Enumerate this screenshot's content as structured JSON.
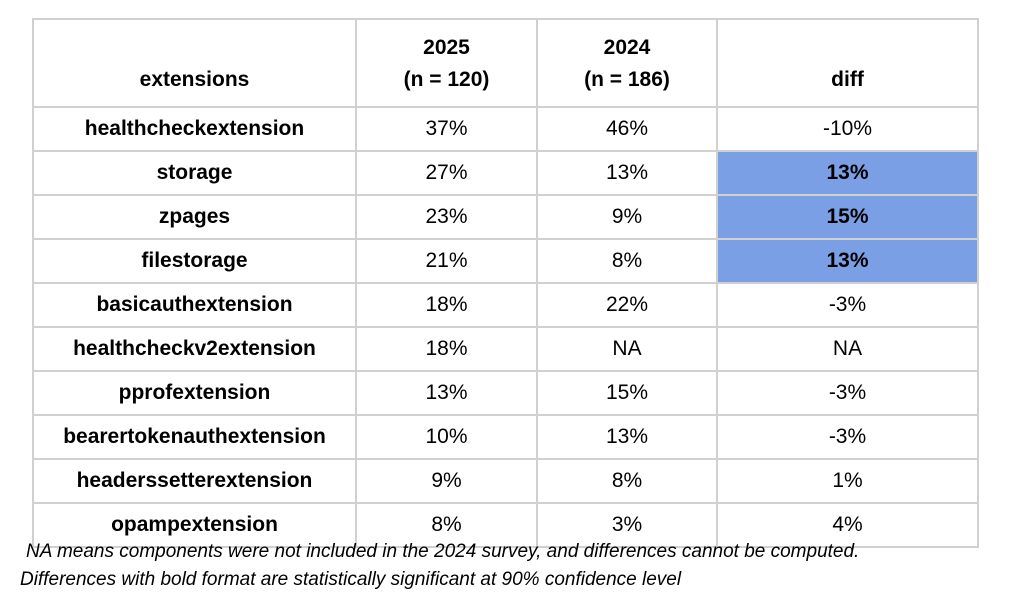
{
  "table": {
    "header": [
      [
        "extensions"
      ],
      [
        "2025",
        "(n = 120)"
      ],
      [
        "2024",
        "(n = 186)"
      ],
      [
        "diff"
      ]
    ],
    "rows": [
      [
        "healthcheckextension",
        "37%",
        "46%",
        "-10%"
      ],
      [
        "storage",
        "27%",
        "13%",
        "13%"
      ],
      [
        "zpages",
        "23%",
        "9%",
        "15%"
      ],
      [
        "filestorage",
        "21%",
        "8%",
        "13%"
      ],
      [
        "basicauthextension",
        "18%",
        "22%",
        "-3%"
      ],
      [
        "healthcheckv2extension",
        "18%",
        "NA",
        "NA"
      ],
      [
        "pprofextension",
        "13%",
        "15%",
        "-3%"
      ],
      [
        "bearertokenauthextension",
        "10%",
        "13%",
        "-3%"
      ],
      [
        "headerssetterextension",
        "9%",
        "8%",
        "1%"
      ],
      [
        "opampextension",
        "8%",
        "3%",
        "4%"
      ]
    ],
    "significant_rows": [
      1,
      2,
      3
    ],
    "highlight_color": "#7b9fe4"
  },
  "notes": [
    "NA means components were not included in the 2024 survey, and differences cannot be computed.",
    "Differences with bold format are statistically significant at 90% confidence level"
  ]
}
